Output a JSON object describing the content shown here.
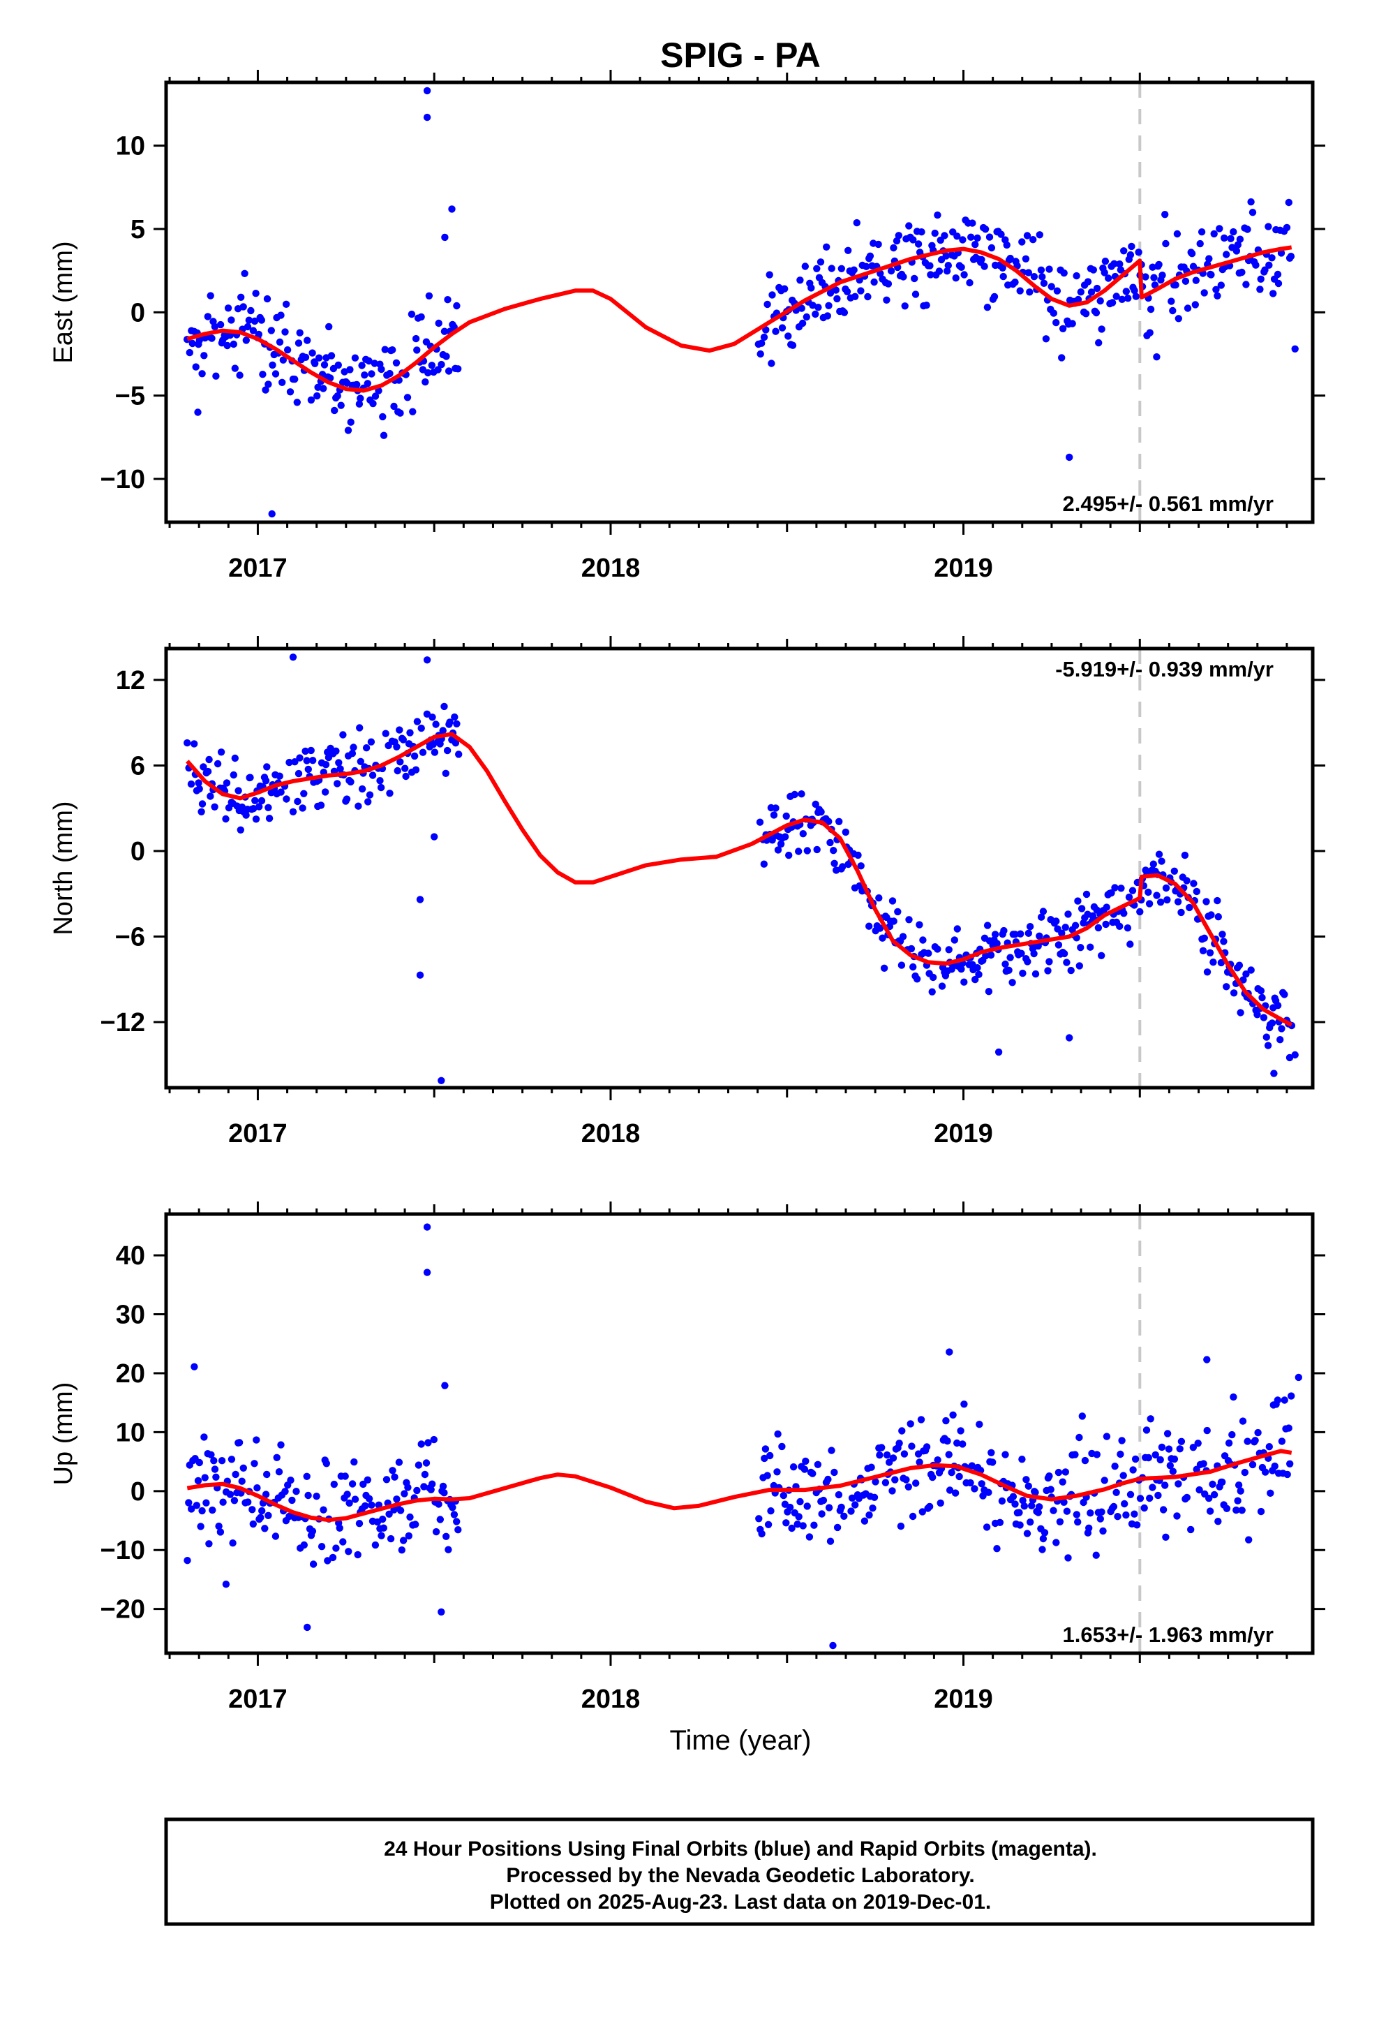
{
  "title": "SPIG - PA",
  "xlabel": "Time (year)",
  "footer": {
    "line1": "24 Hour Positions Using Final Orbits (blue) and Rapid Orbits (magenta).",
    "line2": "Processed by the Nevada Geodetic Laboratory.",
    "line3": "Plotted on 2025-Aug-23. Last data on 2019-Dec-01."
  },
  "colors": {
    "data": "#0000ff",
    "model": "#ff0000",
    "event_line": "#c8c8c8",
    "frame": "#000000"
  },
  "chart_data": [
    {
      "type": "scatter",
      "component": "east",
      "ylabel": "East (mm)",
      "xlim": [
        2016.74,
        2019.99
      ],
      "ylim": [
        -12.6,
        13.8
      ],
      "yticks": [
        10,
        5,
        0,
        -5,
        -10
      ],
      "ytick_labels": [
        "10",
        "5",
        "0",
        "−5",
        "−10"
      ],
      "xticks": [
        2017,
        2018,
        2019
      ],
      "xtick_labels": [
        "2017",
        "2018",
        "2019"
      ],
      "event_line_x": 2019.5,
      "rate_label": "2.495+/- 0.561 mm/yr",
      "rate_position": "bottom-right",
      "data_gap": [
        2017.57,
        2018.42
      ],
      "model": [
        [
          2016.8,
          -1.6
        ],
        [
          2016.85,
          -1.3
        ],
        [
          2016.9,
          -1.1
        ],
        [
          2016.95,
          -1.2
        ],
        [
          2017.0,
          -1.6
        ],
        [
          2017.05,
          -2.2
        ],
        [
          2017.1,
          -2.9
        ],
        [
          2017.15,
          -3.6
        ],
        [
          2017.2,
          -4.2
        ],
        [
          2017.25,
          -4.6
        ],
        [
          2017.3,
          -4.7
        ],
        [
          2017.35,
          -4.4
        ],
        [
          2017.4,
          -3.8
        ],
        [
          2017.45,
          -3.0
        ],
        [
          2017.5,
          -2.1
        ],
        [
          2017.55,
          -1.3
        ],
        [
          2017.6,
          -0.6
        ],
        [
          2017.7,
          0.2
        ],
        [
          2017.8,
          0.8
        ],
        [
          2017.9,
          1.3
        ],
        [
          2017.95,
          1.3
        ],
        [
          2018.0,
          0.8
        ],
        [
          2018.1,
          -0.9
        ],
        [
          2018.2,
          -2.0
        ],
        [
          2018.28,
          -2.3
        ],
        [
          2018.35,
          -1.9
        ],
        [
          2018.45,
          -0.6
        ],
        [
          2018.55,
          0.7
        ],
        [
          2018.65,
          1.8
        ],
        [
          2018.75,
          2.5
        ],
        [
          2018.85,
          3.2
        ],
        [
          2018.95,
          3.7
        ],
        [
          2019.0,
          3.8
        ],
        [
          2019.05,
          3.6
        ],
        [
          2019.1,
          3.2
        ],
        [
          2019.15,
          2.5
        ],
        [
          2019.2,
          1.6
        ],
        [
          2019.25,
          0.8
        ],
        [
          2019.3,
          0.4
        ],
        [
          2019.35,
          0.6
        ],
        [
          2019.4,
          1.3
        ],
        [
          2019.45,
          2.2
        ],
        [
          2019.5,
          3.1
        ],
        [
          2019.505,
          0.9
        ],
        [
          2019.55,
          1.4
        ],
        [
          2019.6,
          2.0
        ],
        [
          2019.65,
          2.4
        ],
        [
          2019.7,
          2.7
        ],
        [
          2019.75,
          3.0
        ],
        [
          2019.8,
          3.3
        ],
        [
          2019.85,
          3.6
        ],
        [
          2019.9,
          3.8
        ],
        [
          2019.93,
          3.9
        ]
      ],
      "outliers": [
        [
          2017.48,
          13.3
        ],
        [
          2017.48,
          11.7
        ],
        [
          2017.55,
          6.2
        ],
        [
          2017.53,
          4.5
        ],
        [
          2017.04,
          -12.1
        ],
        [
          2019.3,
          -8.7
        ],
        [
          2019.94,
          -2.2
        ],
        [
          2016.83,
          -6.0
        ]
      ],
      "series_params": {
        "seed": 11,
        "sigma": 1.35,
        "spacing": 0.0039,
        "segments": [
          [
            2016.8,
            2017.57
          ],
          [
            2018.42,
            2019.93
          ]
        ]
      }
    },
    {
      "type": "scatter",
      "component": "north",
      "ylabel": "North (mm)",
      "xlim": [
        2016.74,
        2019.99
      ],
      "ylim": [
        -16.6,
        14.2
      ],
      "yticks": [
        12,
        6,
        0,
        -6,
        -12
      ],
      "ytick_labels": [
        "12",
        "6",
        "0",
        "−6",
        "−12"
      ],
      "xticks": [
        2017,
        2018,
        2019
      ],
      "xtick_labels": [
        "2017",
        "2018",
        "2019"
      ],
      "event_line_x": 2019.5,
      "rate_label": "-5.919+/- 0.939 mm/yr",
      "rate_position": "top-right",
      "data_gap": [
        2017.57,
        2018.42
      ],
      "model": [
        [
          2016.8,
          6.3
        ],
        [
          2016.85,
          4.9
        ],
        [
          2016.9,
          4.0
        ],
        [
          2016.95,
          3.7
        ],
        [
          2017.0,
          4.1
        ],
        [
          2017.05,
          4.6
        ],
        [
          2017.1,
          4.9
        ],
        [
          2017.15,
          5.1
        ],
        [
          2017.2,
          5.3
        ],
        [
          2017.25,
          5.4
        ],
        [
          2017.3,
          5.6
        ],
        [
          2017.35,
          6.0
        ],
        [
          2017.4,
          6.6
        ],
        [
          2017.45,
          7.3
        ],
        [
          2017.5,
          8.0
        ],
        [
          2017.55,
          8.2
        ],
        [
          2017.6,
          7.3
        ],
        [
          2017.65,
          5.6
        ],
        [
          2017.7,
          3.5
        ],
        [
          2017.75,
          1.5
        ],
        [
          2017.8,
          -0.3
        ],
        [
          2017.85,
          -1.5
        ],
        [
          2017.9,
          -2.2
        ],
        [
          2017.95,
          -2.2
        ],
        [
          2018.0,
          -1.8
        ],
        [
          2018.1,
          -1.0
        ],
        [
          2018.2,
          -0.6
        ],
        [
          2018.3,
          -0.4
        ],
        [
          2018.4,
          0.5
        ],
        [
          2018.5,
          1.8
        ],
        [
          2018.55,
          2.2
        ],
        [
          2018.6,
          2.0
        ],
        [
          2018.65,
          0.9
        ],
        [
          2018.7,
          -1.4
        ],
        [
          2018.75,
          -4.1
        ],
        [
          2018.8,
          -6.3
        ],
        [
          2018.85,
          -7.3
        ],
        [
          2018.9,
          -7.8
        ],
        [
          2018.95,
          -7.9
        ],
        [
          2019.0,
          -7.6
        ],
        [
          2019.05,
          -7.1
        ],
        [
          2019.1,
          -6.8
        ],
        [
          2019.15,
          -6.6
        ],
        [
          2019.2,
          -6.4
        ],
        [
          2019.25,
          -6.2
        ],
        [
          2019.3,
          -6.0
        ],
        [
          2019.35,
          -5.4
        ],
        [
          2019.4,
          -4.5
        ],
        [
          2019.45,
          -3.9
        ],
        [
          2019.5,
          -3.3
        ],
        [
          2019.505,
          -1.8
        ],
        [
          2019.55,
          -1.7
        ],
        [
          2019.6,
          -2.3
        ],
        [
          2019.65,
          -3.6
        ],
        [
          2019.7,
          -5.8
        ],
        [
          2019.75,
          -8.0
        ],
        [
          2019.8,
          -9.9
        ],
        [
          2019.85,
          -11.1
        ],
        [
          2019.9,
          -11.8
        ],
        [
          2019.93,
          -12.2
        ]
      ],
      "outliers": [
        [
          2017.1,
          13.6
        ],
        [
          2017.48,
          13.4
        ],
        [
          2017.5,
          1.0
        ],
        [
          2017.46,
          -3.4
        ],
        [
          2017.46,
          -8.7
        ],
        [
          2017.52,
          -16.1
        ],
        [
          2019.1,
          -14.1
        ],
        [
          2019.3,
          -13.1
        ],
        [
          2019.88,
          -15.6
        ],
        [
          2019.94,
          -14.3
        ]
      ],
      "series_params": {
        "seed": 23,
        "sigma": 1.2,
        "spacing": 0.0039,
        "segments": [
          [
            2016.8,
            2017.57
          ],
          [
            2018.42,
            2019.93
          ]
        ]
      }
    },
    {
      "type": "scatter",
      "component": "up",
      "ylabel": "Up (mm)",
      "xlim": [
        2016.74,
        2019.99
      ],
      "ylim": [
        -27.5,
        47.0
      ],
      "yticks": [
        40,
        30,
        20,
        10,
        0,
        -10,
        -20
      ],
      "ytick_labels": [
        "40",
        "30",
        "20",
        "10",
        "0",
        "−10",
        "−20"
      ],
      "xticks": [
        2017,
        2018,
        2019
      ],
      "xtick_labels": [
        "2017",
        "2018",
        "2019"
      ],
      "event_line_x": 2019.5,
      "rate_label": "1.653+/- 1.963 mm/yr",
      "rate_position": "bottom-right",
      "data_gap": [
        2017.57,
        2018.42
      ],
      "model": [
        [
          2016.8,
          0.5
        ],
        [
          2016.85,
          1.0
        ],
        [
          2016.9,
          1.2
        ],
        [
          2016.95,
          0.5
        ],
        [
          2017.0,
          -0.8
        ],
        [
          2017.05,
          -2.3
        ],
        [
          2017.1,
          -3.6
        ],
        [
          2017.15,
          -4.5
        ],
        [
          2017.2,
          -4.9
        ],
        [
          2017.25,
          -4.6
        ],
        [
          2017.3,
          -3.8
        ],
        [
          2017.35,
          -3.0
        ],
        [
          2017.4,
          -2.2
        ],
        [
          2017.45,
          -1.6
        ],
        [
          2017.5,
          -1.3
        ],
        [
          2017.55,
          -1.4
        ],
        [
          2017.6,
          -1.2
        ],
        [
          2017.7,
          0.5
        ],
        [
          2017.8,
          2.2
        ],
        [
          2017.85,
          2.8
        ],
        [
          2017.9,
          2.5
        ],
        [
          2018.0,
          0.6
        ],
        [
          2018.1,
          -1.8
        ],
        [
          2018.18,
          -2.9
        ],
        [
          2018.25,
          -2.5
        ],
        [
          2018.35,
          -1.0
        ],
        [
          2018.45,
          0.2
        ],
        [
          2018.55,
          0.2
        ],
        [
          2018.65,
          0.9
        ],
        [
          2018.75,
          2.4
        ],
        [
          2018.85,
          3.9
        ],
        [
          2018.92,
          4.4
        ],
        [
          2018.98,
          4.2
        ],
        [
          2019.05,
          2.8
        ],
        [
          2019.12,
          0.8
        ],
        [
          2019.18,
          -0.8
        ],
        [
          2019.25,
          -1.4
        ],
        [
          2019.32,
          -0.8
        ],
        [
          2019.4,
          0.3
        ],
        [
          2019.45,
          1.3
        ],
        [
          2019.5,
          2.1
        ],
        [
          2019.6,
          2.4
        ],
        [
          2019.7,
          3.3
        ],
        [
          2019.78,
          4.8
        ],
        [
          2019.85,
          6.0
        ],
        [
          2019.9,
          6.8
        ],
        [
          2019.93,
          6.5
        ]
      ],
      "outliers": [
        [
          2017.48,
          44.8
        ],
        [
          2017.48,
          37.1
        ],
        [
          2016.82,
          21.1
        ],
        [
          2017.53,
          17.9
        ],
        [
          2017.52,
          -20.5
        ],
        [
          2017.14,
          -23.1
        ],
        [
          2018.63,
          -26.2
        ],
        [
          2018.96,
          23.6
        ],
        [
          2019.69,
          22.3
        ],
        [
          2019.95,
          19.3
        ],
        [
          2016.91,
          -15.8
        ]
      ],
      "series_params": {
        "seed": 37,
        "sigma": 4.8,
        "spacing": 0.0039,
        "segments": [
          [
            2016.8,
            2017.57
          ],
          [
            2018.42,
            2019.93
          ]
        ]
      }
    }
  ]
}
